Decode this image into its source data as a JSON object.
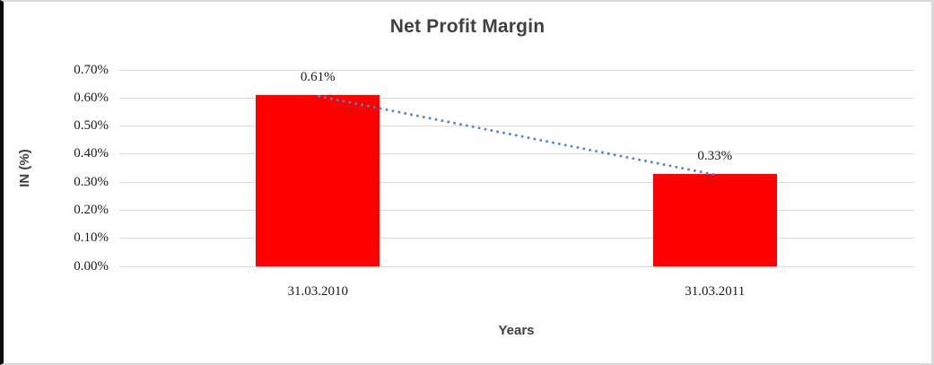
{
  "chart_data": {
    "type": "bar",
    "title": "Net Profit Margin",
    "categories": [
      "31.03.2010",
      "31.03.2011"
    ],
    "values": [
      0.61,
      0.33
    ],
    "data_labels": [
      "0.61%",
      "0.33%"
    ],
    "xlabel": "Years",
    "ylabel": "IN (%)",
    "unit": "%",
    "ylim": [
      0,
      0.7
    ],
    "ytick_step": 0.1,
    "yticks": [
      "0.70%",
      "0.60%",
      "0.50%",
      "0.40%",
      "0.30%",
      "0.20%",
      "0.10%",
      "0.00%"
    ],
    "grid": true,
    "legend": "none",
    "trendline": {
      "type": "linear",
      "style": "dotted",
      "connects": "bar tops from 0.61% to 0.33%",
      "color": "#4a86c8"
    },
    "colors": {
      "bar": "#ff0000",
      "gridline": "#d9d9d9",
      "title_text": "#404040",
      "axis_title_text": "#404040",
      "tick_text": "#1a1a1a"
    }
  }
}
